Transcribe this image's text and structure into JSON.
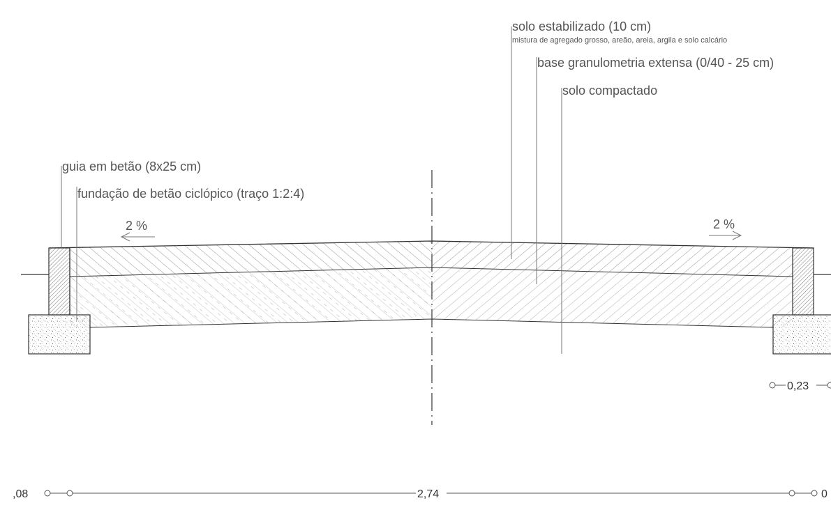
{
  "labels": {
    "stabilized_soil": "solo estabilizado (10 cm)",
    "stabilized_soil_detail": "mistura de agregado grosso, areão, areia, argila e solo calcário",
    "granular_base": "base granulometria extensa (0/40 - 25 cm)",
    "compacted_soil": "solo compactado",
    "concrete_curb": "guia em betão (8x25 cm)",
    "cyclopean_foundation": "fundação de betão ciclópico (traço 1:2:4)"
  },
  "slopes": {
    "left": "2 %",
    "right": "2 %"
  },
  "dimensions": {
    "left_partial": ",08",
    "center": "2,74",
    "right_partial": "0",
    "right_foundation": "0,23"
  }
}
